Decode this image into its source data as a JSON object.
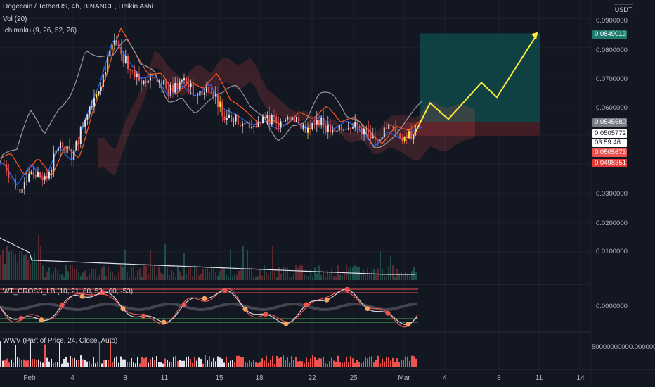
{
  "legend": {
    "symbol": "Dogecoin / TetherUS, 4h, BINANCE, Heikin Ashi",
    "vol": "Vol (20)",
    "ichimoku": "Ichimoku (9, 26, 52, 26)",
    "wt": "WT_CROSS_LB (10, 21, 60, 53, -60, -53)",
    "wwv": "WWV (Part of Price, 24, Close, Auto)"
  },
  "currency_button": "USDT",
  "price_axis": [
    "0.0900000",
    "0.0800000",
    "0.0700000",
    "0.0600000",
    "0.0300000",
    "0.0200000",
    "0.0100000"
  ],
  "wt_axis": "0.0000000",
  "wwv_axis": "50000000000.0000000",
  "price_tags": {
    "target": "0.0849013",
    "entry": "0.0545680",
    "last_price": "0.0505772",
    "countdown": "03:59:46",
    "red1": "0.0505673",
    "red2": "0.0498351"
  },
  "colors": {
    "background": "#131722",
    "bull": "#26a69a",
    "bear": "#ef5350",
    "highlight": "#ffeb3b",
    "target_zone": "#0f4c4c",
    "stop_zone": "#4a1f25"
  },
  "chart_data": {
    "type": "candlestick",
    "x_labels": [
      "Feb",
      "4",
      "8",
      "11",
      "15",
      "18",
      "22",
      "25",
      "Mar",
      "4",
      "8",
      "11",
      "14"
    ],
    "price_range": [
      0.0,
      0.095
    ],
    "projection_path": [
      0.0505,
      0.061,
      0.0555,
      0.068,
      0.063,
      0.0849
    ],
    "target_zone": [
      0.0545,
      0.0849
    ],
    "stop_zone": [
      0.0498,
      0.0545
    ],
    "price_path": [
      0.04,
      0.031,
      0.038,
      0.034,
      0.047,
      0.043,
      0.058,
      0.068,
      0.082,
      0.074,
      0.068,
      0.071,
      0.065,
      0.069,
      0.064,
      0.067,
      0.057,
      0.055,
      0.053,
      0.056,
      0.054,
      0.057,
      0.052,
      0.055,
      0.05,
      0.054,
      0.052,
      0.048,
      0.053,
      0.049,
      0.051
    ]
  }
}
